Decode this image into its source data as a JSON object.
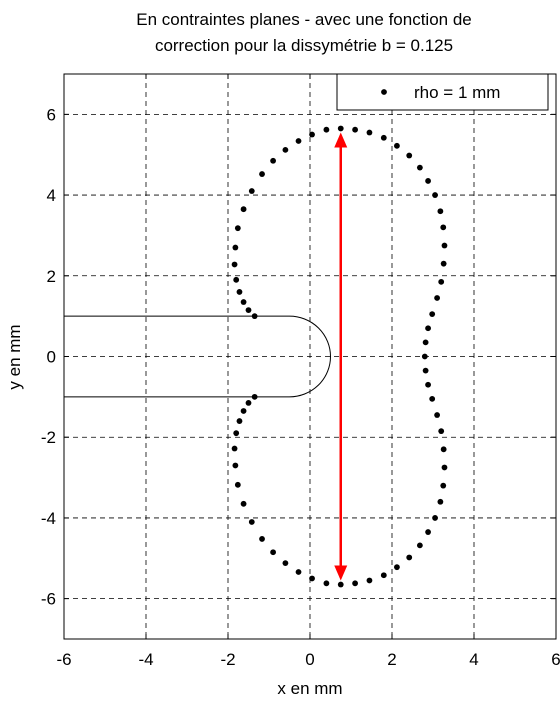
{
  "chart_data": {
    "type": "scatter",
    "title": [
      "En contraintes planes -  avec une fonction de",
      "correction pour la dissymétrie   b = 0.125"
    ],
    "xlabel": "x en mm",
    "ylabel": "y en mm",
    "xlim": [
      -6,
      6
    ],
    "ylim": [
      -7,
      7
    ],
    "xticks": [
      -6,
      -4,
      -2,
      0,
      2,
      4,
      6
    ],
    "yticks": [
      -6,
      -4,
      -2,
      0,
      2,
      4,
      6
    ],
    "grid": true,
    "grid_style": "dashed",
    "legend": {
      "position": "top-right",
      "entries": [
        "rho = 1 mm"
      ]
    },
    "series": [
      {
        "name": "rho = 1 mm",
        "marker": "dot",
        "color": "#000000",
        "points": [
          [
            2.8,
            0.0
          ],
          [
            2.82,
            0.35
          ],
          [
            2.88,
            0.7
          ],
          [
            2.98,
            1.05
          ],
          [
            3.1,
            1.45
          ],
          [
            3.2,
            1.85
          ],
          [
            3.26,
            2.3
          ],
          [
            3.28,
            2.75
          ],
          [
            3.25,
            3.2
          ],
          [
            3.18,
            3.6
          ],
          [
            3.05,
            4.0
          ],
          [
            2.88,
            4.35
          ],
          [
            2.68,
            4.68
          ],
          [
            2.42,
            4.98
          ],
          [
            2.12,
            5.22
          ],
          [
            1.8,
            5.42
          ],
          [
            1.45,
            5.55
          ],
          [
            1.1,
            5.62
          ],
          [
            0.75,
            5.65
          ],
          [
            0.4,
            5.62
          ],
          [
            0.05,
            5.5
          ],
          [
            -0.28,
            5.34
          ],
          [
            -0.6,
            5.12
          ],
          [
            -0.9,
            4.85
          ],
          [
            -1.17,
            4.52
          ],
          [
            -1.42,
            4.1
          ],
          [
            -1.62,
            3.65
          ],
          [
            -1.76,
            3.18
          ],
          [
            -1.82,
            2.7
          ],
          [
            -1.84,
            2.28
          ],
          [
            -1.8,
            1.9
          ],
          [
            -1.72,
            1.6
          ],
          [
            -1.62,
            1.35
          ],
          [
            -1.5,
            1.15
          ],
          [
            -1.35,
            1.0
          ],
          [
            2.82,
            -0.35
          ],
          [
            2.88,
            -0.7
          ],
          [
            2.98,
            -1.05
          ],
          [
            3.1,
            -1.45
          ],
          [
            3.2,
            -1.85
          ],
          [
            3.26,
            -2.3
          ],
          [
            3.28,
            -2.75
          ],
          [
            3.25,
            -3.2
          ],
          [
            3.18,
            -3.6
          ],
          [
            3.05,
            -4.0
          ],
          [
            2.88,
            -4.35
          ],
          [
            2.68,
            -4.68
          ],
          [
            2.42,
            -4.98
          ],
          [
            2.12,
            -5.22
          ],
          [
            1.8,
            -5.42
          ],
          [
            1.45,
            -5.55
          ],
          [
            1.1,
            -5.62
          ],
          [
            0.75,
            -5.65
          ],
          [
            0.4,
            -5.62
          ],
          [
            0.05,
            -5.5
          ],
          [
            -0.28,
            -5.34
          ],
          [
            -0.6,
            -5.12
          ],
          [
            -0.9,
            -4.85
          ],
          [
            -1.17,
            -4.52
          ],
          [
            -1.42,
            -4.1
          ],
          [
            -1.62,
            -3.65
          ],
          [
            -1.76,
            -3.18
          ],
          [
            -1.82,
            -2.7
          ],
          [
            -1.84,
            -2.28
          ],
          [
            -1.8,
            -1.9
          ],
          [
            -1.72,
            -1.6
          ],
          [
            -1.62,
            -1.35
          ],
          [
            -1.5,
            -1.15
          ],
          [
            -1.35,
            -1.0
          ]
        ]
      }
    ],
    "notch": {
      "half_width": 1.0,
      "tip_x": 0.5,
      "tip_radius": 1.0,
      "color": "#000000"
    },
    "annotation_arrow": {
      "x": 0.75,
      "y_from": -5.55,
      "y_to": 5.55,
      "color": "#ff0000"
    }
  }
}
